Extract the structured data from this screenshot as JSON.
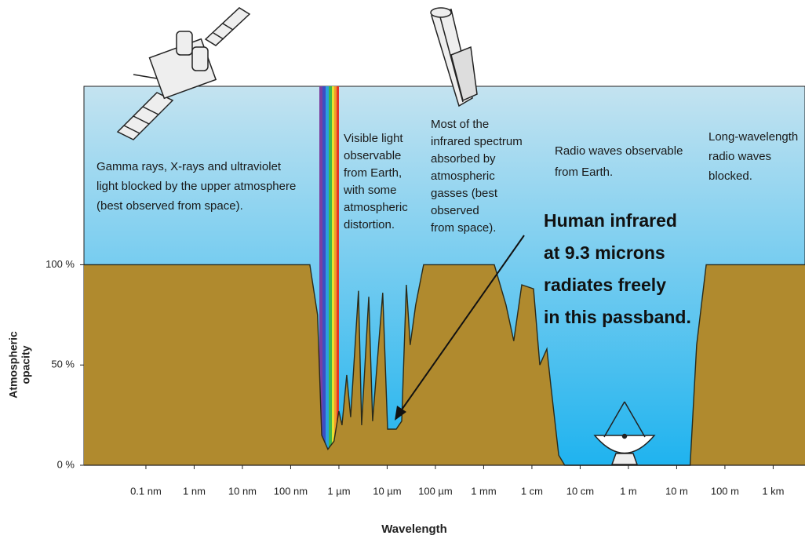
{
  "chart_data": {
    "type": "area",
    "x_label": "Wavelength",
    "y_label": [
      "Atmospheric",
      "opacity"
    ],
    "x_scale": "log",
    "xlim": [
      5.2e-12,
      4570
    ],
    "ylim": [
      0,
      189
    ],
    "xticks": [
      {
        "value": 1e-10,
        "label": "0.1 nm"
      },
      {
        "value": 1e-09,
        "label": "1 nm"
      },
      {
        "value": 1e-08,
        "label": "10 nm"
      },
      {
        "value": 1e-07,
        "label": "100 nm"
      },
      {
        "value": 1e-06,
        "label": "1 µm"
      },
      {
        "value": 1e-05,
        "label": "10 µm"
      },
      {
        "value": 0.0001,
        "label": "100 µm"
      },
      {
        "value": 0.001,
        "label": "1 mm"
      },
      {
        "value": 0.01,
        "label": "1 cm"
      },
      {
        "value": 0.1,
        "label": "10 cm"
      },
      {
        "value": 1,
        "label": "1 m"
      },
      {
        "value": 10,
        "label": "10 m"
      },
      {
        "value": 100,
        "label": "100 m"
      },
      {
        "value": 1000,
        "label": "1 km"
      }
    ],
    "yticks": [
      {
        "value": 0,
        "label": "0 %"
      },
      {
        "value": 50,
        "label": "50 %"
      },
      {
        "value": 100,
        "label": "100 %"
      }
    ],
    "color": "#b08a2e",
    "x": [
      5.2e-12,
      2.5e-07,
      3.6e-07,
      4.4e-07,
      5.9e-07,
      7.9e-07,
      1e-06,
      1.16e-06,
      1.45e-06,
      1.75e-06,
      2.55e-06,
      2.96e-06,
      4.15e-06,
      5e-06,
      8.1e-06,
      1.02e-05,
      1.54e-05,
      2e-05,
      2.5e-05,
      3e-05,
      3.9e-05,
      5.7e-05,
      0.00166,
      0.0029,
      0.0042,
      0.00615,
      0.0108,
      0.0146,
      0.0204,
      0.0246,
      0.036,
      0.048,
      19,
      26,
      41,
      4570
    ],
    "values": [
      100,
      100,
      75,
      15,
      8,
      12,
      27,
      20,
      45,
      24,
      87,
      20,
      84,
      22,
      86,
      18,
      18,
      22,
      90,
      60,
      80,
      100,
      100,
      80,
      62,
      90,
      88,
      50,
      58,
      40,
      5,
      0,
      0,
      60,
      100,
      100
    ],
    "annotations": [
      {
        "lines": [
          "Gamma rays, X-rays and ultraviolet",
          "light blocked by the upper atmosphere",
          "(best observed from space)."
        ]
      },
      {
        "lines": [
          "Visible light",
          "observable",
          "from Earth,",
          "with some",
          "atmospheric",
          "distortion."
        ]
      },
      {
        "lines": [
          "Most of the",
          "infrared spectrum",
          "absorbed by",
          "atmospheric",
          "gasses (best",
          "observed",
          "from space)."
        ]
      },
      {
        "lines": [
          "Radio waves observable",
          "from Earth."
        ]
      },
      {
        "lines": [
          "Long-wavelength",
          "radio waves",
          "blocked."
        ]
      },
      {
        "lines": [
          "Human infrared",
          "at 9.3 microns",
          "radiates freely",
          "in this passband."
        ]
      }
    ]
  }
}
